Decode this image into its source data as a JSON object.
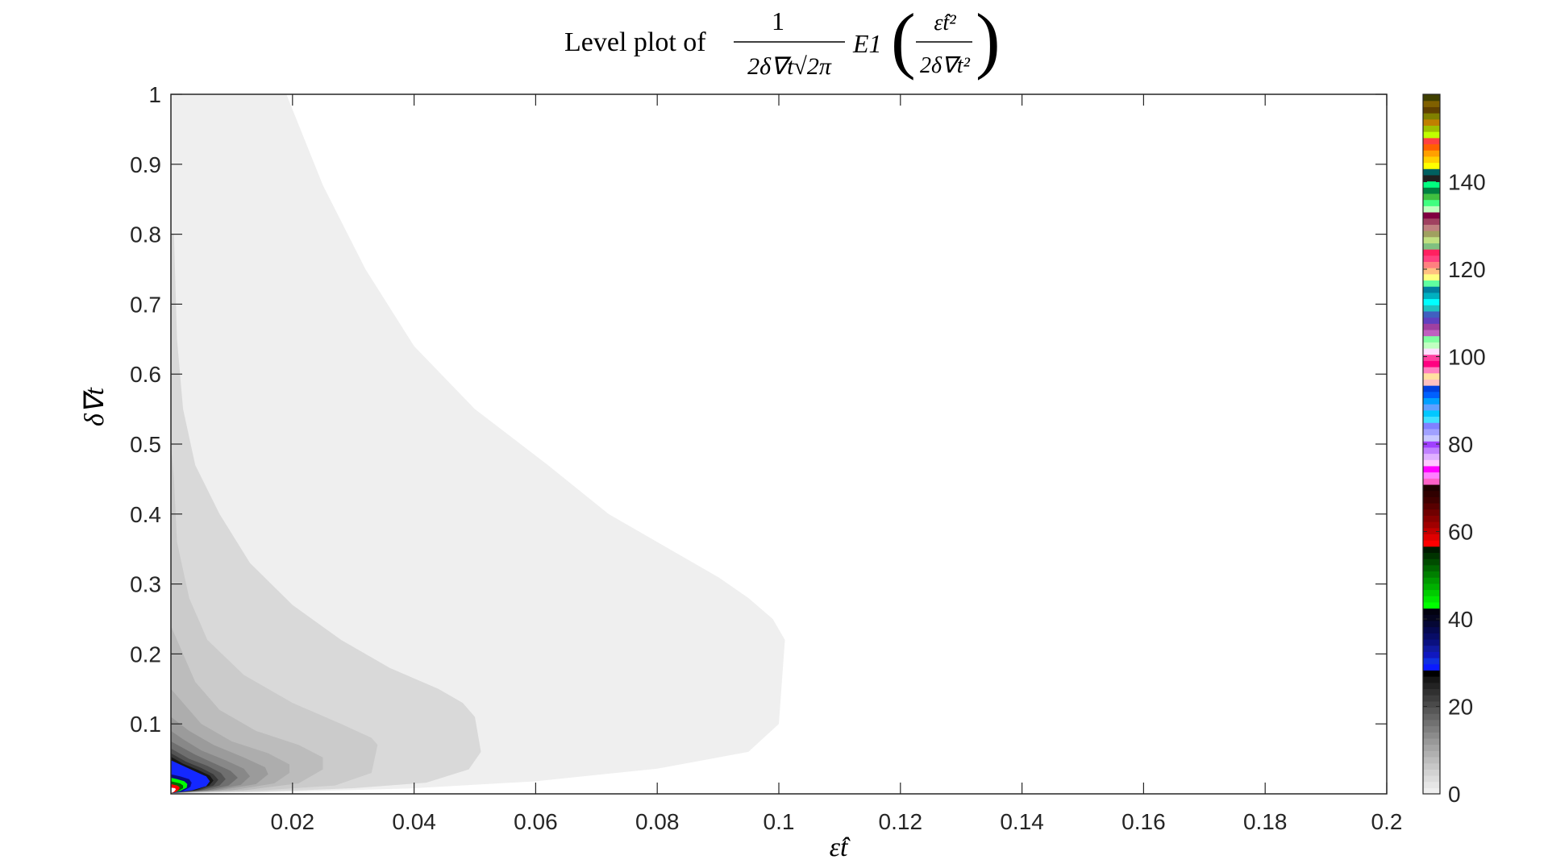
{
  "chart_data": {
    "type": "heatmap",
    "subtype": "filled-contour",
    "title": {
      "prefix": "Level plot of",
      "fraction_numerator": "1",
      "fraction_denominator": "2δ∇t√2π",
      "function": "E1",
      "argument_numerator": "ε̂t²",
      "argument_denominator": "2δ∇t²"
    },
    "xlabel": "ε̂t",
    "ylabel": "δ∇t",
    "xlim": [
      0,
      0.2
    ],
    "ylim": [
      0,
      1
    ],
    "x_ticks": [
      "0.02",
      "0.04",
      "0.06",
      "0.08",
      "0.1",
      "0.12",
      "0.14",
      "0.16",
      "0.18",
      "0.2"
    ],
    "y_ticks": [
      "0.1",
      "0.2",
      "0.3",
      "0.4",
      "0.5",
      "0.6",
      "0.7",
      "0.8",
      "0.9",
      "1"
    ],
    "colorbar": {
      "range": [
        0,
        160
      ],
      "ticks": [
        "0",
        "20",
        "40",
        "60",
        "80",
        "100",
        "120",
        "140"
      ],
      "bands": [
        "#efefef",
        "#e6e6e6",
        "#dcdcdc",
        "#d2d2d2",
        "#c7c7c7",
        "#bcbcbc",
        "#b0b0b0",
        "#a4a4a4",
        "#989898",
        "#8b8b8b",
        "#7e7e7e",
        "#717171",
        "#646464",
        "#575757",
        "#4a4a4a",
        "#3d3d3d",
        "#303030",
        "#232323",
        "#161616",
        "#000000",
        "#0a1aff",
        "#1030e0",
        "#1018c0",
        "#101aa0",
        "#0a1080",
        "#080c66",
        "#06094f",
        "#050735",
        "#04051f",
        "#020210",
        "#00ff00",
        "#00e600",
        "#00cc00",
        "#00b000",
        "#009900",
        "#007f00",
        "#006600",
        "#004c00",
        "#003300",
        "#001a00",
        "#ff0000",
        "#e00000",
        "#c00000",
        "#a00000",
        "#880000",
        "#700000",
        "#580000",
        "#400000",
        "#300000",
        "#200000",
        "#ff60c8",
        "#ff80ff",
        "#ff00ff",
        "#ffc8ff",
        "#e0b0ff",
        "#c080ff",
        "#a040ff",
        "#c8c8ff",
        "#a0a0ff",
        "#8080ff",
        "#40e0ff",
        "#00c8ff",
        "#60a0ff",
        "#00a0ff",
        "#0060ff",
        "#0040e0",
        "#ffc0c0",
        "#ffe0a0",
        "#ff80c0",
        "#ff0080",
        "#ff40a0",
        "#ffe0ff",
        "#c0ffc0",
        "#80ffa0",
        "#c060c0",
        "#a040a0",
        "#6040c0",
        "#4060c0",
        "#20c0c0",
        "#00ffff",
        "#00b0c0",
        "#0080a0",
        "#60ffa0",
        "#ffff80",
        "#ffc080",
        "#ff8080",
        "#ff4080",
        "#ff2060",
        "#80c080",
        "#c0e080",
        "#a0a060",
        "#c08080",
        "#a04060",
        "#800040",
        "#c0ffc0",
        "#40ff80",
        "#40c040",
        "#008040",
        "#00ff80",
        "#202020",
        "#006060",
        "#ffff00",
        "#ffd000",
        "#ffa000",
        "#ff6000",
        "#ff4040",
        "#c0ff00",
        "#a0c000",
        "#c08000",
        "#808000",
        "#604000",
        "#806000",
        "#404000"
      ]
    },
    "contour_regions": [
      {
        "level": 1,
        "color": "#efefef",
        "points": [
          [
            0,
            0.001
          ],
          [
            0.02,
            0.003
          ],
          [
            0.04,
            0.008
          ],
          [
            0.06,
            0.018
          ],
          [
            0.08,
            0.036
          ],
          [
            0.095,
            0.06
          ],
          [
            0.1,
            0.1
          ],
          [
            0.101,
            0.22
          ],
          [
            0.099,
            0.25
          ],
          [
            0.095,
            0.28
          ],
          [
            0.09,
            0.31
          ],
          [
            0.082,
            0.35
          ],
          [
            0.072,
            0.4
          ],
          [
            0.062,
            0.47
          ],
          [
            0.05,
            0.55
          ],
          [
            0.04,
            0.64
          ],
          [
            0.032,
            0.75
          ],
          [
            0.025,
            0.87
          ],
          [
            0.019,
            1.0
          ],
          [
            0,
            1.0
          ]
        ]
      },
      {
        "level": 2,
        "color": "#d9d9d9",
        "points": [
          [
            0,
            0.001
          ],
          [
            0.015,
            0.003
          ],
          [
            0.03,
            0.008
          ],
          [
            0.042,
            0.016
          ],
          [
            0.049,
            0.035
          ],
          [
            0.051,
            0.06
          ],
          [
            0.05,
            0.11
          ],
          [
            0.048,
            0.13
          ],
          [
            0.044,
            0.15
          ],
          [
            0.036,
            0.18
          ],
          [
            0.028,
            0.22
          ],
          [
            0.02,
            0.27
          ],
          [
            0.013,
            0.33
          ],
          [
            0.008,
            0.4
          ],
          [
            0.004,
            0.47
          ],
          [
            0.002,
            0.55
          ],
          [
            0.001,
            0.65
          ],
          [
            0.0005,
            0.8
          ],
          [
            0,
            0.8
          ]
        ]
      },
      {
        "level": 3,
        "color": "#cbcbcb",
        "points": [
          [
            0,
            0.001
          ],
          [
            0.015,
            0.005
          ],
          [
            0.027,
            0.012
          ],
          [
            0.033,
            0.03
          ],
          [
            0.034,
            0.07
          ],
          [
            0.033,
            0.08
          ],
          [
            0.028,
            0.1
          ],
          [
            0.02,
            0.13
          ],
          [
            0.012,
            0.17
          ],
          [
            0.006,
            0.22
          ],
          [
            0.003,
            0.28
          ],
          [
            0.001,
            0.36
          ],
          [
            0.0005,
            0.45
          ],
          [
            0,
            0.5
          ]
        ]
      },
      {
        "level": 4,
        "color": "#bcbcbc",
        "points": [
          [
            0,
            0.001
          ],
          [
            0.012,
            0.005
          ],
          [
            0.021,
            0.015
          ],
          [
            0.025,
            0.035
          ],
          [
            0.025,
            0.052
          ],
          [
            0.021,
            0.07
          ],
          [
            0.014,
            0.09
          ],
          [
            0.008,
            0.12
          ],
          [
            0.004,
            0.16
          ],
          [
            0.0015,
            0.21
          ],
          [
            0,
            0.24
          ]
        ]
      },
      {
        "level": 5,
        "color": "#adadad",
        "points": [
          [
            0,
            0.001
          ],
          [
            0.01,
            0.005
          ],
          [
            0.017,
            0.015
          ],
          [
            0.0195,
            0.03
          ],
          [
            0.0195,
            0.042
          ],
          [
            0.016,
            0.058
          ],
          [
            0.01,
            0.075
          ],
          [
            0.005,
            0.1
          ],
          [
            0.002,
            0.13
          ],
          [
            0,
            0.15
          ]
        ]
      },
      {
        "level": 6,
        "color": "#9b9b9b",
        "points": [
          [
            0,
            0.001
          ],
          [
            0.008,
            0.005
          ],
          [
            0.014,
            0.014
          ],
          [
            0.016,
            0.028
          ],
          [
            0.0155,
            0.038
          ],
          [
            0.012,
            0.052
          ],
          [
            0.007,
            0.07
          ],
          [
            0.003,
            0.09
          ],
          [
            0,
            0.11
          ]
        ]
      },
      {
        "level": 7,
        "color": "#888888",
        "points": [
          [
            0,
            0.001
          ],
          [
            0.007,
            0.005
          ],
          [
            0.0115,
            0.013
          ],
          [
            0.013,
            0.025
          ],
          [
            0.012,
            0.036
          ],
          [
            0.009,
            0.048
          ],
          [
            0.005,
            0.062
          ],
          [
            0.002,
            0.078
          ],
          [
            0,
            0.09
          ]
        ]
      },
      {
        "level": 8,
        "color": "#6f6f6f",
        "points": [
          [
            0,
            0.001
          ],
          [
            0.006,
            0.005
          ],
          [
            0.0095,
            0.012
          ],
          [
            0.011,
            0.023
          ],
          [
            0.0098,
            0.033
          ],
          [
            0.007,
            0.044
          ],
          [
            0.004,
            0.056
          ],
          [
            0,
            0.075
          ]
        ]
      },
      {
        "level": 9,
        "color": "#545454",
        "points": [
          [
            0,
            0.001
          ],
          [
            0.005,
            0.005
          ],
          [
            0.008,
            0.012
          ],
          [
            0.009,
            0.021
          ],
          [
            0.0082,
            0.03
          ],
          [
            0.006,
            0.04
          ],
          [
            0.003,
            0.05
          ],
          [
            0,
            0.065
          ]
        ]
      },
      {
        "level": 10,
        "color": "#383838",
        "points": [
          [
            0,
            0.001
          ],
          [
            0.0045,
            0.005
          ],
          [
            0.007,
            0.012
          ],
          [
            0.0078,
            0.02
          ],
          [
            0.007,
            0.028
          ],
          [
            0.005,
            0.037
          ],
          [
            0.0025,
            0.046
          ],
          [
            0,
            0.058
          ]
        ]
      },
      {
        "level": 11,
        "color": "#161616",
        "points": [
          [
            0,
            0.001
          ],
          [
            0.004,
            0.005
          ],
          [
            0.0063,
            0.012
          ],
          [
            0.007,
            0.019
          ],
          [
            0.0064,
            0.026
          ],
          [
            0.0045,
            0.034
          ],
          [
            0.002,
            0.043
          ],
          [
            0,
            0.053
          ]
        ]
      },
      {
        "level": 12,
        "color": "#1428ff",
        "points": [
          [
            0,
            0.001
          ],
          [
            0.0035,
            0.005
          ],
          [
            0.0058,
            0.011
          ],
          [
            0.0064,
            0.018
          ],
          [
            0.0058,
            0.025
          ],
          [
            0.004,
            0.032
          ],
          [
            0.002,
            0.04
          ],
          [
            0,
            0.048
          ]
        ]
      },
      {
        "level": 13,
        "color": "#0a0a80",
        "points": [
          [
            0,
            0.001
          ],
          [
            0.002,
            0.004
          ],
          [
            0.0032,
            0.01
          ],
          [
            0.0034,
            0.016
          ],
          [
            0.003,
            0.021
          ],
          [
            0.0015,
            0.025
          ],
          [
            0,
            0.028
          ]
        ]
      },
      {
        "level": 14,
        "color": "#00ff00",
        "points": [
          [
            0,
            0.001
          ],
          [
            0.0015,
            0.004
          ],
          [
            0.0026,
            0.009
          ],
          [
            0.0027,
            0.014
          ],
          [
            0.0022,
            0.018
          ],
          [
            0.001,
            0.021
          ],
          [
            0,
            0.023
          ]
        ]
      },
      {
        "level": 15,
        "color": "#006600",
        "points": [
          [
            0,
            0.001
          ],
          [
            0.0012,
            0.004
          ],
          [
            0.002,
            0.008
          ],
          [
            0.002,
            0.012
          ],
          [
            0.0015,
            0.015
          ],
          [
            0,
            0.018
          ]
        ]
      },
      {
        "level": 16,
        "color": "#ff0000",
        "points": [
          [
            0,
            0.001
          ],
          [
            0.0009,
            0.003
          ],
          [
            0.0014,
            0.007
          ],
          [
            0.0014,
            0.01
          ],
          [
            0.001,
            0.012
          ],
          [
            0,
            0.014
          ]
        ]
      },
      {
        "level": 17,
        "color": "#ffffff",
        "points": [
          [
            0,
            0.001
          ],
          [
            0.0005,
            0.003
          ],
          [
            0.0008,
            0.006
          ],
          [
            0.0007,
            0.008
          ],
          [
            0,
            0.009
          ]
        ]
      }
    ]
  }
}
